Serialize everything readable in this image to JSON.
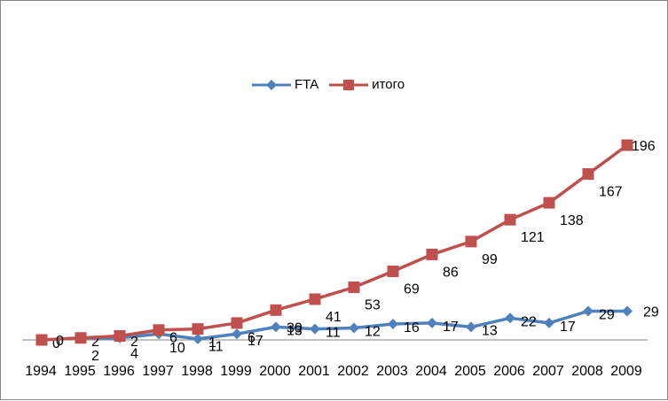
{
  "chart_data": {
    "type": "line",
    "x": [
      "1994",
      "1995",
      "1996",
      "1997",
      "1998",
      "1999",
      "2000",
      "2001",
      "2002",
      "2003",
      "2004",
      "2005",
      "2006",
      "2007",
      "2008",
      "2009"
    ],
    "series": [
      {
        "name": "FTA",
        "color": "#4F81BD",
        "marker": "diamond",
        "values": [
          0,
          2,
          2,
          6,
          1,
          6,
          13,
          11,
          12,
          16,
          17,
          13,
          22,
          17,
          29,
          29
        ],
        "labels": [
          "0",
          "2",
          "2",
          "6",
          "1",
          "6",
          "13",
          "11",
          "12",
          "16",
          "17",
          "13",
          "22",
          "17",
          "29",
          "29"
        ]
      },
      {
        "name": "итого",
        "color": "#C0504D",
        "marker": "square",
        "values": [
          0,
          2,
          4,
          10,
          11,
          17,
          30,
          41,
          53,
          69,
          86,
          99,
          121,
          138,
          167,
          196
        ],
        "labels": [
          "0",
          "2",
          "4",
          "10",
          "11",
          "17",
          "30",
          "41",
          "53",
          "69",
          "86",
          "99",
          "121",
          "138",
          "167",
          "196"
        ]
      }
    ],
    "legend_position": "top-center",
    "grid": false
  },
  "legend": {
    "fta_label": "FTA",
    "total_label": "итого"
  }
}
